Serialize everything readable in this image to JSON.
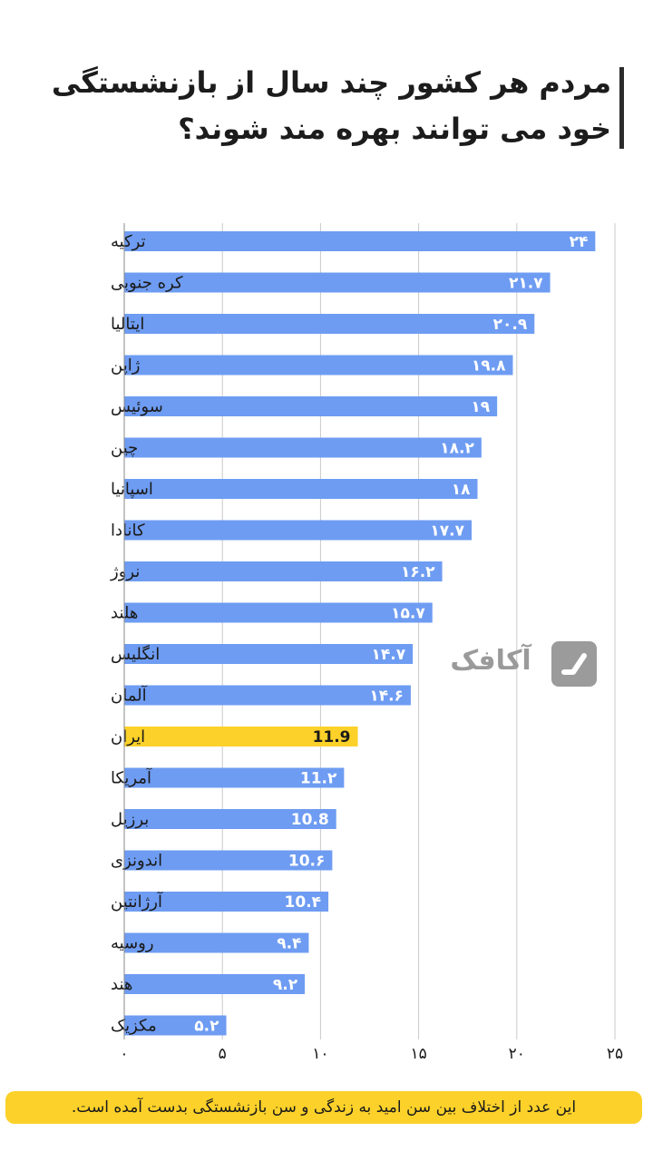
{
  "title": "مردم هر کشور چند سال از بازنشستگی خود می توانند بهره مند شوند؟",
  "footer_note": "این عدد از اختلاف بین سن امید به زندگی و سن بازنشستگی بدست آمده است.",
  "logo_text": "آکافک",
  "colors": {
    "bar": "#6e9cf2",
    "highlight": "#fcd12a",
    "grid": "#c9c9c9",
    "text": "#1a1a1a"
  },
  "chart_data": {
    "type": "bar",
    "orientation": "horizontal",
    "title": "مردم هر کشور چند سال از بازنشستگی خود می توانند بهره مند شوند؟",
    "xlabel": "",
    "ylabel": "",
    "xlim": [
      0,
      25
    ],
    "x_ticks": [
      0,
      5,
      10,
      15,
      20,
      25
    ],
    "x_tick_labels": [
      "۰",
      "۵",
      "۱۰",
      "۱۵",
      "۲۰",
      "۲۵"
    ],
    "grid": "vertical",
    "highlight_category": "ایران",
    "categories": [
      "ترکیه",
      "کره جنوبی",
      "ایتالیا",
      "ژاپن",
      "سوئیس",
      "چین",
      "اسپانیا",
      "کانادا",
      "نروژ",
      "هلند",
      "انگلیس",
      "آلمان",
      "ایران",
      "آمریکا",
      "برزیل",
      "اندونزی",
      "آرژانتین",
      "روسیه",
      "هند",
      "مکزیک"
    ],
    "values": [
      24,
      21.7,
      20.9,
      19.8,
      19,
      18.2,
      18,
      17.7,
      16.2,
      15.7,
      14.7,
      14.6,
      11.9,
      11.2,
      10.8,
      10.6,
      10.4,
      9.4,
      9.2,
      5.2
    ],
    "value_labels": [
      "۲۴",
      "۲۱.۷",
      "۲۰.۹",
      "۱۹.۸",
      "۱۹",
      "۱۸.۲",
      "۱۸",
      "۱۷.۷",
      "۱۶.۲",
      "۱۵.۷",
      "۱۴.۷",
      "۱۴.۶",
      "11.9",
      "11.۲",
      "10.8",
      "10.۶",
      "10.۴",
      "۹.۴",
      "۹.۲",
      "۵.۲"
    ]
  }
}
